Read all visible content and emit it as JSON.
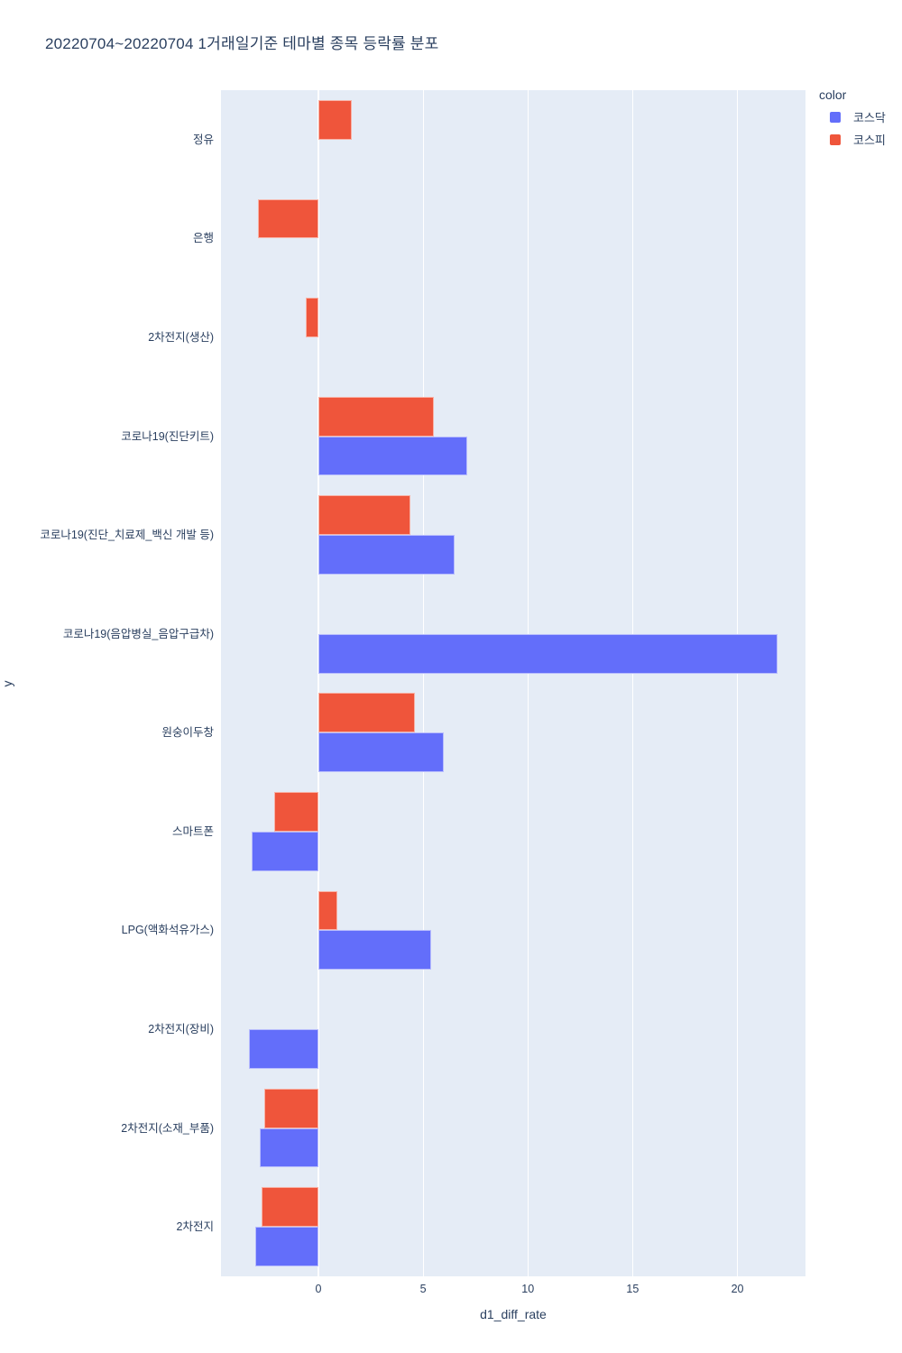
{
  "style": {
    "paper_bg": "#ffffff",
    "plot_bg": "#e5ecf6",
    "grid_color": "#ffffff",
    "text_color": "#2a3f5f",
    "kosdaq_blue": "#636EFA",
    "kospi_red": "#EF553B"
  },
  "chart_data": {
    "type": "bar",
    "orientation": "horizontal",
    "title": "20220704~20220704 1거래일기준 테마별 종목 등락률 분포",
    "xlabel": "d1_diff_rate",
    "ylabel": "y",
    "legend_title": "color",
    "legend_position": "top-right",
    "grid": true,
    "categories": [
      "정유",
      "은행",
      "2차전지(생산)",
      "코로나19(진단키트)",
      "코로나19(진단_치료제_백신 개발 등)",
      "코로나19(음압병실_음압구급차)",
      "원숭이두창",
      "스마트폰",
      "LPG(액화석유가스)",
      "2차전지(장비)",
      "2차전지(소재_부품)",
      "2차전지"
    ],
    "series": [
      {
        "name": "코스닥",
        "color": "#636EFA",
        "values": [
          null,
          null,
          null,
          7.1,
          6.5,
          21.9,
          6.0,
          -3.2,
          5.4,
          -3.3,
          -2.8,
          -3.0
        ]
      },
      {
        "name": "코스피",
        "color": "#EF553B",
        "values": [
          1.6,
          -2.9,
          -0.6,
          5.5,
          4.4,
          null,
          4.6,
          -2.1,
          0.9,
          null,
          -2.6,
          -2.7
        ]
      }
    ],
    "xlim": [
      -4.65,
      23.25
    ],
    "xticks": [
      0,
      5,
      10,
      15,
      20
    ]
  }
}
